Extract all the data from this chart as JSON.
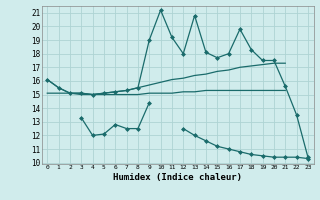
{
  "x": [
    0,
    1,
    2,
    3,
    4,
    5,
    6,
    7,
    8,
    9,
    10,
    11,
    12,
    13,
    14,
    15,
    16,
    17,
    18,
    19,
    20,
    21,
    22,
    23
  ],
  "line_top": [
    16.1,
    15.5,
    15.1,
    15.1,
    15.0,
    15.1,
    15.2,
    15.3,
    15.5,
    19.0,
    21.2,
    19.2,
    18.0,
    20.8,
    18.1,
    17.7,
    18.0,
    19.8,
    18.3,
    17.5,
    17.5,
    15.6,
    13.5,
    10.4
  ],
  "line_upper_smooth": [
    16.1,
    15.5,
    15.1,
    15.1,
    15.0,
    15.1,
    15.2,
    15.3,
    15.5,
    15.7,
    15.9,
    16.1,
    16.2,
    16.4,
    16.5,
    16.7,
    16.8,
    17.0,
    17.1,
    17.2,
    17.3,
    17.3,
    null,
    null
  ],
  "line_lower_smooth": [
    15.1,
    15.1,
    15.1,
    15.0,
    15.0,
    15.0,
    15.0,
    15.0,
    15.0,
    15.1,
    15.1,
    15.1,
    15.2,
    15.2,
    15.3,
    15.3,
    15.3,
    15.3,
    15.3,
    15.3,
    15.3,
    15.3,
    null,
    null
  ],
  "line_bottom": [
    null,
    null,
    null,
    13.3,
    12.0,
    12.1,
    12.8,
    12.5,
    12.5,
    14.4,
    null,
    null,
    12.5,
    12.0,
    11.6,
    11.2,
    11.0,
    10.8,
    10.6,
    10.5,
    10.4,
    10.4,
    10.4,
    10.3
  ],
  "xlim": [
    -0.5,
    23.5
  ],
  "ylim": [
    10,
    21.5
  ],
  "yticks": [
    10,
    11,
    12,
    13,
    14,
    15,
    16,
    17,
    18,
    19,
    20,
    21
  ],
  "xticks": [
    0,
    1,
    2,
    3,
    4,
    5,
    6,
    7,
    8,
    9,
    10,
    11,
    12,
    13,
    14,
    15,
    16,
    17,
    18,
    19,
    20,
    21,
    22,
    23
  ],
  "xlabel": "Humidex (Indice chaleur)",
  "line_color": "#1a6b6b",
  "bg_color": "#d0ecec",
  "grid_color": "#aed4d4",
  "marker": "D"
}
